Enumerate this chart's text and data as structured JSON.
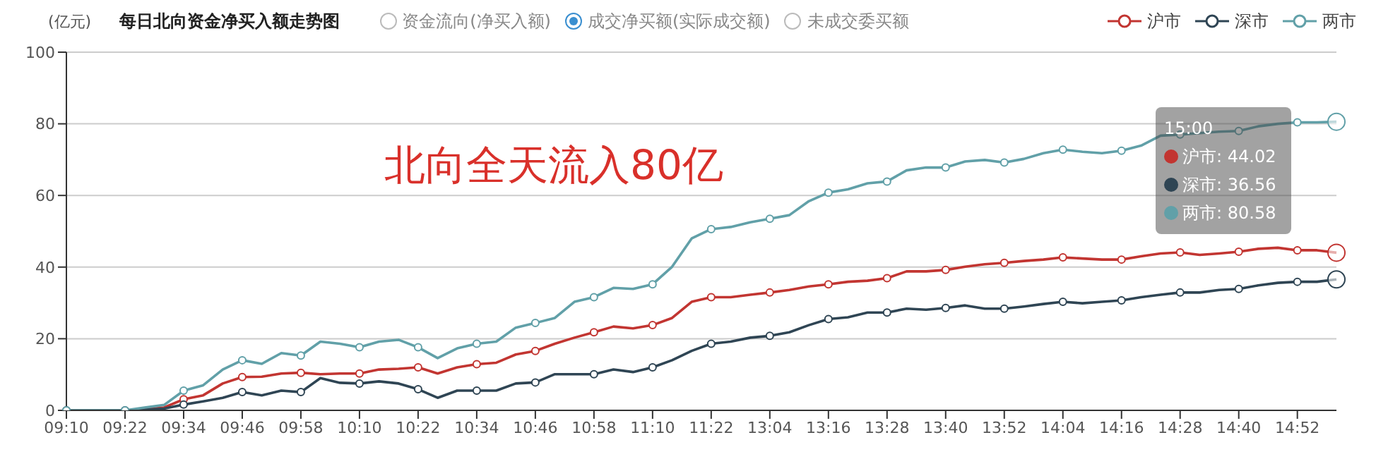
{
  "chart_data": {
    "type": "line",
    "title": "每日北向资金净买入额走势图",
    "ylabel": "(亿元)",
    "categories": [
      "09:10",
      null,
      null,
      "09:22",
      null,
      null,
      "09:34",
      null,
      null,
      "09:46",
      null,
      null,
      "09:58",
      null,
      null,
      "10:10",
      null,
      null,
      "10:22",
      null,
      null,
      "10:34",
      null,
      null,
      "10:46",
      null,
      null,
      "10:58",
      null,
      null,
      "11:10",
      null,
      null,
      "11:22",
      null,
      null,
      "13:04",
      null,
      null,
      "13:16",
      null,
      null,
      "13:28",
      null,
      null,
      "13:40",
      null,
      null,
      "13:52",
      null,
      null,
      "14:04",
      null,
      null,
      "14:16",
      null,
      null,
      "14:28",
      null,
      null,
      "14:40",
      null,
      null,
      "14:52",
      null,
      null
    ],
    "series": [
      {
        "name": "沪市",
        "color": "#c23531",
        "values": [
          null,
          null,
          null,
          null,
          0.3,
          0.8,
          3.1,
          4.2,
          7.5,
          9.3,
          9.4,
          10.3,
          10.5,
          10.1,
          10.3,
          10.3,
          11.4,
          11.6,
          12,
          10.3,
          12,
          12.9,
          13.3,
          15.6,
          16.6,
          18.6,
          20.3,
          21.8,
          23.4,
          22.9,
          23.8,
          25.8,
          30.3,
          31.6,
          31.6,
          32.3,
          32.9,
          33.6,
          34.6,
          35.2,
          35.9,
          36.2,
          36.9,
          38.8,
          38.8,
          39.2,
          40.1,
          40.8,
          41.2,
          41.7,
          42.1,
          42.7,
          42.4,
          42.1,
          42.1,
          43,
          43.8,
          44.1,
          43.4,
          43.8,
          44.3,
          45.1,
          45.4,
          44.7,
          44.7,
          44.02
        ]
      },
      {
        "name": "深市",
        "color": "#2f4554",
        "values": [
          0,
          0,
          0,
          0,
          0.2,
          0.5,
          1.6,
          2.5,
          3.5,
          5.1,
          4.2,
          5.5,
          5.1,
          9,
          7.7,
          7.5,
          8.1,
          7.5,
          5.9,
          3.5,
          5.5,
          5.5,
          5.5,
          7.5,
          7.8,
          10.1,
          10.1,
          10.1,
          11.4,
          10.7,
          12,
          14,
          16.6,
          18.6,
          19.2,
          20.3,
          20.8,
          21.8,
          23.8,
          25.5,
          26,
          27.3,
          27.3,
          28.4,
          28.1,
          28.6,
          29.3,
          28.4,
          28.4,
          29,
          29.7,
          30.3,
          29.9,
          30.3,
          30.7,
          31.6,
          32.3,
          32.9,
          32.9,
          33.6,
          33.9,
          34.9,
          35.6,
          35.9,
          35.9,
          36.56
        ]
      },
      {
        "name": "两市",
        "color": "#61a0a8",
        "values": [
          0,
          0,
          0,
          0,
          0.8,
          1.5,
          5.5,
          7,
          11.4,
          14,
          13,
          16,
          15.3,
          19.2,
          18.6,
          17.6,
          19.2,
          19.7,
          17.6,
          14.6,
          17.3,
          18.6,
          19.2,
          23.1,
          24.4,
          25.8,
          30.3,
          31.6,
          34.2,
          33.9,
          35.2,
          40.1,
          48,
          50.6,
          51.2,
          52.5,
          53.5,
          54.5,
          58.4,
          60.8,
          61.7,
          63.4,
          63.9,
          67,
          67.8,
          67.8,
          69.5,
          69.9,
          69.2,
          70.2,
          71.8,
          72.8,
          72.2,
          71.8,
          72.5,
          73.9,
          76.7,
          77,
          77.4,
          77.8,
          78,
          79.3,
          80,
          80.4,
          80.4,
          80.58
        ]
      }
    ],
    "ylim": [
      0,
      100
    ],
    "yticks": [
      0,
      20,
      40,
      60,
      80,
      100
    ],
    "grid": "y",
    "legend": "top right",
    "annotations": [
      "北向全天流入80亿",
      "资金流向(净买入额)",
      "成交净买额(实际成交额)",
      "未成交委买额",
      "15:00",
      "沪市: 44.02",
      "深市: 36.56",
      "两市: 80.58"
    ]
  }
}
